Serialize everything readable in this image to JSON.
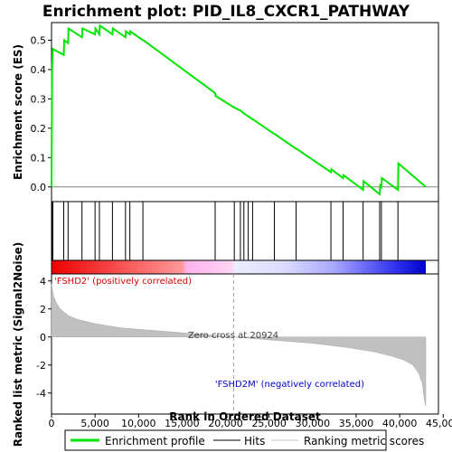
{
  "chart_data": {
    "type": "line",
    "title": "Enrichment plot: PID_IL8_CXCR1_PATHWAY",
    "top_ylabel": "Enrichment score (ES)",
    "bottom_ylabel": "Ranked list metric (Signal2Noise)",
    "xlabel": "Rank in Ordered Dataset",
    "xlim": [
      0,
      43000
    ],
    "x_ticks": [
      0,
      5000,
      10000,
      15000,
      20000,
      25000,
      30000,
      35000,
      40000,
      45000
    ],
    "x_tick_labels": [
      "0",
      "5,000",
      "10,000",
      "15,000",
      "20,000",
      "25,000",
      "30,000",
      "35,000",
      "40,000",
      "45,000"
    ],
    "es_ylim": [
      -0.05,
      0.56
    ],
    "es_ticks": [
      0.0,
      0.1,
      0.2,
      0.3,
      0.4,
      0.5
    ],
    "es_tick_labels": [
      "0.0",
      "0.1",
      "0.2",
      "0.3",
      "0.4",
      "0.5"
    ],
    "metric_ylim": [
      -5.5,
      4.5
    ],
    "metric_ticks": [
      -4,
      -2,
      0,
      2,
      4
    ],
    "metric_tick_labels": [
      "-4",
      "-2",
      "0",
      "2",
      "4"
    ],
    "enrichment_profile": {
      "name": "Enrichment profile",
      "color": "#00ff00",
      "x": [
        0,
        60,
        150,
        1400,
        1450,
        1900,
        1950,
        3500,
        3550,
        5000,
        5050,
        5500,
        5550,
        7000,
        7050,
        8500,
        8550,
        9000,
        9050,
        10500,
        10550,
        18800,
        18850,
        21000,
        21050,
        21700,
        21750,
        22100,
        22150,
        22600,
        22650,
        23100,
        23150,
        25600,
        25650,
        28100,
        28150,
        32100,
        32150,
        33500,
        33550,
        35800,
        35850,
        37700,
        37750,
        37900,
        37950,
        39800,
        39850,
        43000
      ],
      "y": [
        0.0,
        0.4,
        0.47,
        0.45,
        0.5,
        0.49,
        0.54,
        0.51,
        0.54,
        0.52,
        0.54,
        0.52,
        0.55,
        0.52,
        0.54,
        0.51,
        0.53,
        0.52,
        0.53,
        0.5,
        0.5,
        0.32,
        0.31,
        0.27,
        0.27,
        0.26,
        0.26,
        0.25,
        0.25,
        0.24,
        0.24,
        0.23,
        0.23,
        0.18,
        0.18,
        0.13,
        0.13,
        0.05,
        0.06,
        0.03,
        0.04,
        -0.01,
        0.02,
        -0.025,
        0.005,
        0.0,
        0.03,
        -0.01,
        0.08,
        0.0
      ]
    },
    "hits": {
      "name": "Hits",
      "x": [
        60,
        150,
        1400,
        1900,
        3500,
        5000,
        5500,
        7000,
        8500,
        9000,
        10500,
        18800,
        21000,
        21700,
        22100,
        22600,
        23100,
        25600,
        28100,
        32100,
        33500,
        35800,
        37700,
        37900,
        39800
      ]
    },
    "ranking_metric": {
      "name": "Ranking metric scores",
      "color": "#c0c0c0",
      "x": [
        0,
        200,
        500,
        1000,
        2000,
        3000,
        5000,
        8000,
        12000,
        16000,
        20924,
        25000,
        30000,
        34000,
        37000,
        39000,
        40500,
        41500,
        42200,
        42600,
        42900,
        43000
      ],
      "y": [
        3.8,
        3.0,
        2.5,
        2.0,
        1.5,
        1.25,
        0.95,
        0.65,
        0.45,
        0.25,
        0.0,
        -0.2,
        -0.45,
        -0.75,
        -1.05,
        -1.35,
        -1.65,
        -2.0,
        -2.6,
        -3.3,
        -4.7,
        -4.9
      ]
    },
    "zero_cross": 20924,
    "zero_cross_label": "Zero cross at 20924",
    "positive_label": "'FSHD2' (positively correlated)",
    "negative_label": "'FSHD2M' (negatively correlated)",
    "legend": [
      "Enrichment profile",
      "Hits",
      "Ranking metric scores"
    ],
    "legend_position": "bottom"
  }
}
